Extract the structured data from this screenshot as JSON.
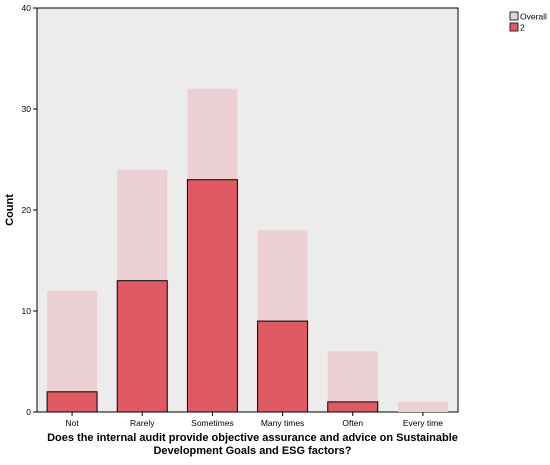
{
  "chart_data": {
    "type": "bar",
    "overlay": true,
    "title": "",
    "xlabel": "Does the internal audit provide objective assurance and advice on Sustainable Development Goals and ESG factors?",
    "ylabel": "Count",
    "categories": [
      "Not",
      "Rarely",
      "Sometimes",
      "Many times",
      "Often",
      "Every time"
    ],
    "series": [
      {
        "name": "Overall",
        "values": [
          12,
          24,
          32,
          18,
          6,
          1
        ],
        "color": "#ebcfd2"
      },
      {
        "name": "2",
        "values": [
          2,
          13,
          23,
          9,
          1,
          0
        ],
        "color": "#e05a64"
      }
    ],
    "ylim": [
      0,
      40
    ],
    "yticks": [
      0,
      10,
      20,
      30,
      40
    ],
    "grid": false,
    "legend_position": "top-right",
    "plot_background": "#ececec",
    "bar_outline_color": "#000000"
  }
}
